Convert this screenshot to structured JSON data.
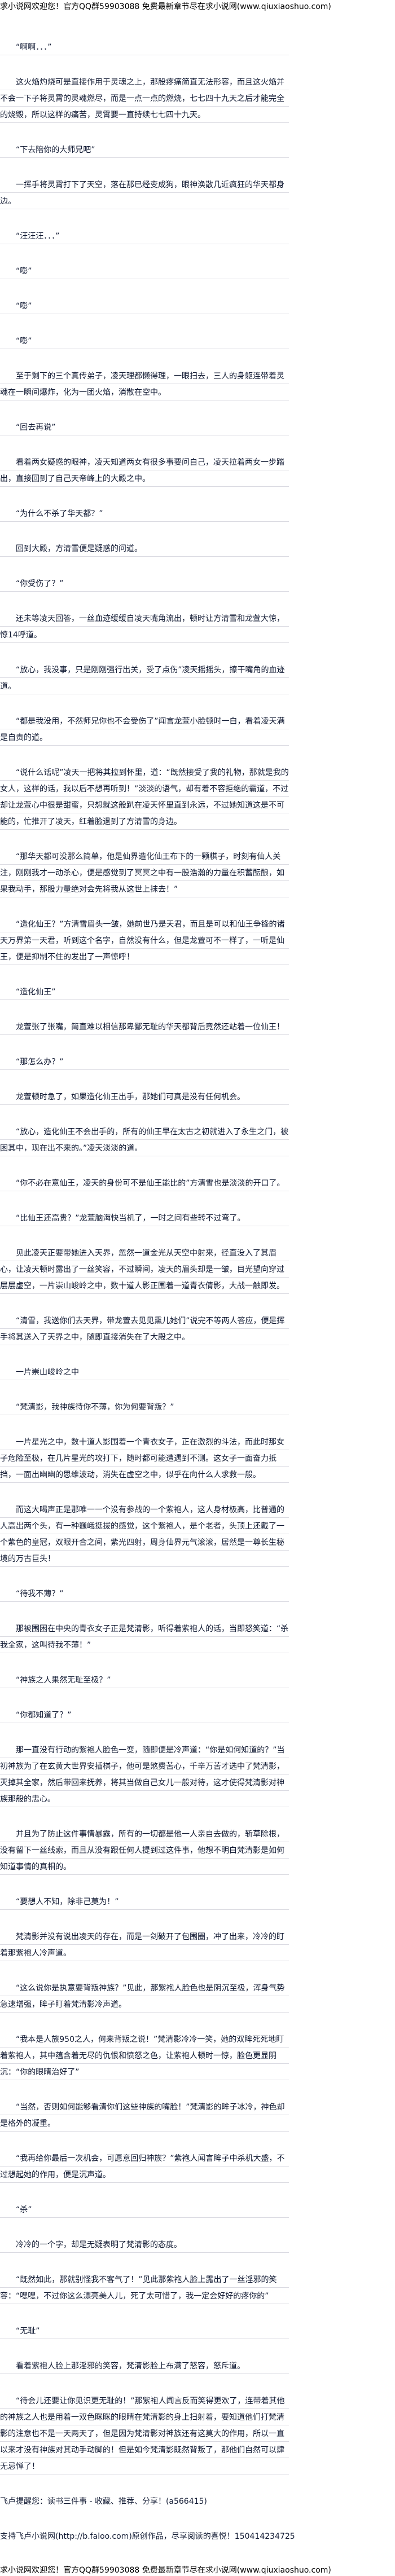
{
  "header_banner": "求小说网欢迎您！官方QQ群59903088 免费最新章节尽在求小说网(www.qiuxiaoshuo.com)",
  "paragraphs": [
    "“啊啊．．．”",
    "这火焰灼烧可是直接作用于灵魂之上，那股疼痛简直无法形容，而且这火焰并不会一下子将灵霄的灵魂燃尽，而是一点一点的燃烧，七七四十九天之后才能完全的烧毁，所以这样的痛苦，灵霄要一直持续七七四十九天。",
    "“下去陪你的大师兄吧”",
    "一挥手将灵霄打下了天空，落在那已经变成狗，眼神涣散几近疯狂的华天都身边。",
    "“汪汪汪．．．”",
    "“嘭”",
    "“嘭”",
    "“嘭”",
    "至于剩下的三个真传弟子，凌天理都懒得理，一眼扫去，三人的身躯连带着灵魂在一瞬间爆炸，化为一团火焰，消散在空中。",
    "“回去再说”",
    "看着两女疑惑的眼神，凌天知道两女有很多事要问自己，凌天拉着两女一步踏出，直接回到了自己天帝峰上的大殿之中。",
    "“为什么不杀了华天都？”",
    "回到大殿，方清雪便是疑惑的问道。",
    "“你受伤了？”",
    "还未等凌天回答，一丝血迹缓缓自凌天嘴角流出，顿时让方清雪和龙萱大惊，惊14呼道。",
    "“放心，我没事，只是刚刚强行出关，受了点伤”凌天摇摇头，擦干嘴角的血迹道。",
    "“都是我没用，不然师兄你也不会受伤了”闻言龙萱小脸顿时一白，看着凌天满是自责的道。",
    "“说什么话呢”凌天一把将其拉到怀里，道：“既然接受了我的礼物，那就是我的女人，这样的话，我以后不想再听到！”淡淡的语气，却有着不容拒绝的霸道，不过却让龙萱心中很是甜蜜，只想就这般趴在凌天怀里直到永远，不过她知道这是不可能的，忙推开了凌天，红着脸退到了方清雪的身边。",
    "“那华天都可没那么简单，他是仙界造化仙王布下的一颗棋子，时刻有仙人关注，刚刚我才一动杀心，便是感觉到了冥冥之中有一股浩瀚的力量在积蓄酝酿，如果我动手，那股力量绝对会先将我从这世上抹去！”",
    "“造化仙王？”方清雪眉头一皱，她前世乃是天君，而且是可以和仙王争锋的诸天万界第一天君，听到这个名字，自然没有什么，但是龙萱可不一样了，一听是仙王，便是抑制不住的发出了一声惊呼！",
    "“造化仙王”",
    "龙萱张了张嘴，简直难以相信那卑鄙无耻的华天都背后竟然还站着一位仙王！",
    "“那怎么办？”",
    "龙萱顿时急了，如果造化仙王出手，那她们可真是没有任何机会。",
    "“放心，造化仙王不会出手的，所有的仙王早在太古之初就进入了永生之门，被困其中，现在出不来的。”凌天淡淡的道。",
    "“你不必在意仙王，凌天的身份可不是仙王能比的”方清雪也是淡淡的开口了。",
    "“比仙王还高贵？”龙萱脑海快当机了，一时之间有些转不过弯了。",
    "见此凌天正要带她进入天界，忽然一道金光从天空中射来，径直没入了其眉心，让凌天顿时露出了一丝笑容，不过瞬间，凌天的眉头却是一皱，目光望向穿过层层虚空，一片崇山峻岭之中，数十道人影正围着一道青衣倩影，大战一触即发。",
    "“清雪，我送你们去天界，带龙萱去见见熏儿她们”说完不等两人答应，便是挥手将其送入了天界之中，随即直接消失在了大殿之中。",
    "一片崇山峻岭之中",
    "“梵清影，我神族待你不薄，你为何要背叛？”",
    "一片星光之中，数十道人影围着一个青衣女子，正在激烈的斗法，而此时那女子危险至极，在几片星光的攻打下，随时都可能遭遇到不测。这女子一面奋力抵挡，一面出幽幽的思维波动，消失在虚空之中，似乎在向什么人求救一般。",
    "而这大喝声正是那唯一一个没有参战的一个紫袍人，这人身材极高，比普通的人高出两个头，有一种巍峨挺拔的感觉，这个紫袍人，是个老者，头顶上还戴了一个紫色的皇冠，双眼开合之间，紫光四射，周身仙界元气滚滚，居然是一尊长生秘境的万古巨头！",
    "“待我不薄？”",
    "那被围困在中央的青衣女子正是梵清影，听得着紫袍人的话，当即怒笑道：“杀我全家，这叫待我不薄！”",
    "“神族之人果然无耻至极？”",
    "“你都知道了？”",
    "那一直没有行动的紫袍人脸色一变，随即便是冷声道：“你是如何知道的？”当初神族为了在玄黄大世界安插棋子，他可是煞费苦心，千辛万苦才选中了梵清影，灭掉其全家，然后带回来抚养，将其当做自己女儿一般对待，这才使得梵清影对神族那般的忠心。",
    "并且为了防止这件事情暴露，所有的一切都是他一人亲自去做的，斩草除根，没有留下一丝线索，而且从没有跟任何人提到过这件事，他想不明白梵清影是如何知道事情的真相的。",
    "“要想人不知，除非己莫为！”",
    "梵清影并没有说出凌天的存在，而是一剑破开了包围圈，冲了出来，冷冷的盯着那紫袍人冷声道。",
    "“这么说你是执意要背叛神族？”见此，那紫袍人脸色也是阴沉至极，浑身气势急速增强，眸子盯着梵清影冷声道。",
    "“我本是人族950之人，何来背叛之说！”梵清影冷冷一笑，她的双眸死死地盯着紫袍人，其中蕴含着无尽的仇恨和愤怒之色，让紫袍人顿时一惊，脸色更显阴沉：“你的眼睛治好了”",
    "“当然，否则如何能够看清你们这些神族的嘴脸！”梵清影的眸子冰冷，神色却是格外的凝重。",
    "“我再给你最后一次机会，可愿意回归神族？”紫袍人闻言眸子中杀机大盛，不过想起她的作用，便是沉声道。",
    "“杀”",
    "冷冷的一个字，却是无疑表明了梵清影的态度。",
    "“既然如此，那就别怪我不客气了！”见此那紫袍人脸上露出了一丝淫邪的笑容：“嘿嘿，不过你这么漂亮美人儿，死了太可惜了，我一定会好好的疼你的”",
    "“无耻”",
    "看着紫袍人脸上那淫邪的笑容，梵清影脸上布满了怒容，怒斥道。",
    "“待会儿还要让你见识更无耻的！”那紫袍人闻言反而笑得更欢了，连带着其他的神族之人也是用着一双色眯眯的眼睛在梵清影的身上扫射着，要知道他们打梵清影的注意也不是一天两天了，但是因为梵清影对神族还有这莫大的作用，所以一直以来才没有神族对其动手动脚的！但是如今梵清影既然背叛了，那他们自然可以肆无忌惮了！"
  ],
  "footer_notes": [
    "飞卢提醒您：读书三件事 - 收藏、推荐、分享！(a566415)",
    "支持飞卢小说网(http://b.faloo.com)原创作品，尽享阅读的喜悦！150414234725"
  ],
  "footer_banner": "求小说网欢迎您！官方QQ群59903088 免费最新章节尽在求小说网(www.qiuxiaoshuo.com)"
}
